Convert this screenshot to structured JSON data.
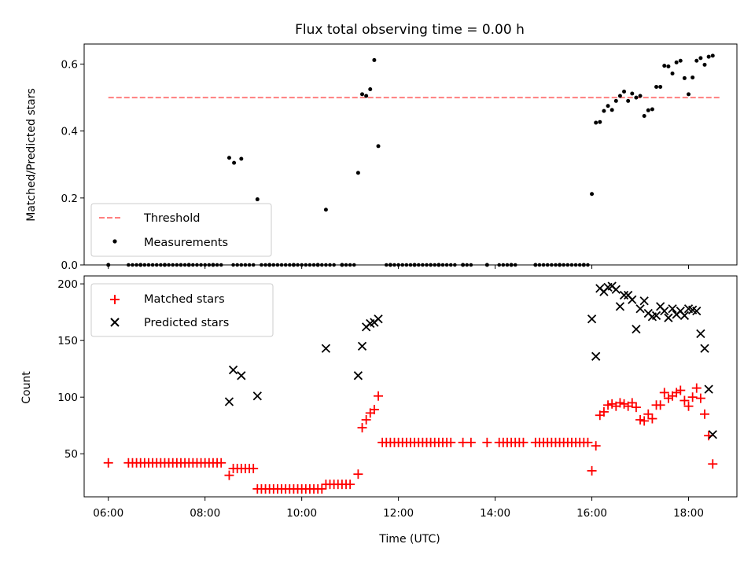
{
  "chart_data": [
    {
      "type": "scatter",
      "title": "Flux total observing time = 0.00 h",
      "ylabel": "Matched/Predicted stars",
      "xlabel": "",
      "xlim": [
        "05:30",
        "19:00"
      ],
      "ylim": [
        0,
        0.66
      ],
      "yticks": [
        0.0,
        0.2,
        0.4,
        0.6
      ],
      "ytick_labels": [
        "0.0",
        "0.2",
        "0.4",
        "0.6"
      ],
      "legend": {
        "placement": "lower-left"
      },
      "threshold": {
        "name": "Threshold",
        "y": 0.5,
        "x": [
          "06:00",
          "18:40"
        ],
        "color": "#ff7f7f"
      },
      "series": [
        {
          "name": "Measurements",
          "color": "#000000",
          "marker": "dot",
          "points": [
            [
              "06:00",
              0.0
            ],
            [
              "06:40",
              0.0
            ],
            [
              "07:10",
              0.0
            ],
            [
              "07:40",
              0.0
            ],
            [
              "08:10",
              0.0
            ],
            [
              "08:30",
              0.32
            ],
            [
              "08:36",
              0.305
            ],
            [
              "08:45",
              0.317
            ],
            [
              "09:05",
              0.196
            ],
            [
              "09:20",
              0.0
            ],
            [
              "09:50",
              0.0
            ],
            [
              "10:20",
              0.0
            ],
            [
              "10:30",
              0.165
            ],
            [
              "10:50",
              0.0
            ],
            [
              "11:10",
              0.275
            ],
            [
              "11:15",
              0.51
            ],
            [
              "11:20",
              0.505
            ],
            [
              "11:25",
              0.525
            ],
            [
              "11:30",
              0.612
            ],
            [
              "11:35",
              0.355
            ],
            [
              "11:50",
              0.0
            ],
            [
              "12:20",
              0.0
            ],
            [
              "12:50",
              0.0
            ],
            [
              "13:20",
              0.0
            ],
            [
              "13:50",
              0.0
            ],
            [
              "14:20",
              0.0
            ],
            [
              "14:50",
              0.0
            ],
            [
              "15:20",
              0.0
            ],
            [
              "15:50",
              0.0
            ],
            [
              "16:00",
              0.212
            ],
            [
              "16:05",
              0.425
            ],
            [
              "16:10",
              0.427
            ],
            [
              "16:15",
              0.46
            ],
            [
              "16:20",
              0.475
            ],
            [
              "16:25",
              0.463
            ],
            [
              "16:30",
              0.49
            ],
            [
              "16:35",
              0.505
            ],
            [
              "16:40",
              0.518
            ],
            [
              "16:45",
              0.49
            ],
            [
              "16:50",
              0.512
            ],
            [
              "16:55",
              0.5
            ],
            [
              "17:00",
              0.505
            ],
            [
              "17:05",
              0.445
            ],
            [
              "17:10",
              0.462
            ],
            [
              "17:15",
              0.465
            ],
            [
              "17:20",
              0.532
            ],
            [
              "17:25",
              0.532
            ],
            [
              "17:30",
              0.595
            ],
            [
              "17:35",
              0.593
            ],
            [
              "17:40",
              0.572
            ],
            [
              "17:45",
              0.605
            ],
            [
              "17:50",
              0.61
            ],
            [
              "17:55",
              0.558
            ],
            [
              "18:00",
              0.51
            ],
            [
              "18:05",
              0.56
            ],
            [
              "18:10",
              0.61
            ],
            [
              "18:15",
              0.618
            ],
            [
              "18:20",
              0.598
            ],
            [
              "18:25",
              0.622
            ],
            [
              "18:30",
              0.625
            ]
          ]
        }
      ],
      "zero_runs": [
        [
          "06:00",
          "06:00"
        ],
        [
          "06:25",
          "07:30"
        ],
        [
          "07:30",
          "08:20"
        ],
        [
          "08:35",
          "09:00"
        ],
        [
          "09:10",
          "10:40"
        ],
        [
          "10:50",
          "11:08"
        ],
        [
          "11:45",
          "12:40"
        ],
        [
          "12:40",
          "13:10"
        ],
        [
          "13:20",
          "13:30"
        ],
        [
          "14:05",
          "14:25"
        ],
        [
          "14:55",
          "15:58"
        ]
      ]
    },
    {
      "type": "scatter",
      "title": "",
      "ylabel": "Count",
      "xlabel": "Time (UTC)",
      "xlim": [
        "05:30",
        "19:00"
      ],
      "ylim": [
        12,
        207
      ],
      "yticks": [
        50,
        100,
        150,
        200
      ],
      "ytick_labels": [
        "50",
        "100",
        "150",
        "200"
      ],
      "xticks": [
        "06:00",
        "08:00",
        "10:00",
        "12:00",
        "14:00",
        "16:00",
        "18:00"
      ],
      "xtick_labels": [
        "06:00",
        "08:00",
        "10:00",
        "12:00",
        "14:00",
        "16:00",
        "18:00"
      ],
      "legend": {
        "placement": "top-left"
      },
      "series": [
        {
          "name": "Matched stars",
          "color": "#ff0000",
          "marker": "plus",
          "points": [
            [
              "06:00",
              42
            ],
            [
              "06:25",
              42
            ],
            [
              "06:30",
              42
            ],
            [
              "06:35",
              42
            ],
            [
              "06:40",
              42
            ],
            [
              "06:45",
              42
            ],
            [
              "06:50",
              42
            ],
            [
              "06:55",
              42
            ],
            [
              "07:00",
              42
            ],
            [
              "07:05",
              42
            ],
            [
              "07:10",
              42
            ],
            [
              "07:15",
              42
            ],
            [
              "07:20",
              42
            ],
            [
              "07:25",
              42
            ],
            [
              "07:30",
              42
            ],
            [
              "07:35",
              42
            ],
            [
              "07:40",
              42
            ],
            [
              "07:45",
              42
            ],
            [
              "07:50",
              42
            ],
            [
              "07:55",
              42
            ],
            [
              "08:00",
              42
            ],
            [
              "08:05",
              42
            ],
            [
              "08:10",
              42
            ],
            [
              "08:15",
              42
            ],
            [
              "08:20",
              42
            ],
            [
              "08:30",
              31
            ],
            [
              "08:35",
              37
            ],
            [
              "08:40",
              37
            ],
            [
              "08:45",
              37
            ],
            [
              "08:50",
              37
            ],
            [
              "08:55",
              37
            ],
            [
              "09:00",
              37
            ],
            [
              "09:05",
              19
            ],
            [
              "09:10",
              19
            ],
            [
              "09:15",
              19
            ],
            [
              "09:20",
              19
            ],
            [
              "09:25",
              19
            ],
            [
              "09:30",
              19
            ],
            [
              "09:35",
              19
            ],
            [
              "09:40",
              19
            ],
            [
              "09:45",
              19
            ],
            [
              "09:50",
              19
            ],
            [
              "09:55",
              19
            ],
            [
              "10:00",
              19
            ],
            [
              "10:05",
              19
            ],
            [
              "10:10",
              19
            ],
            [
              "10:15",
              19
            ],
            [
              "10:20",
              19
            ],
            [
              "10:25",
              19
            ],
            [
              "10:30",
              23
            ],
            [
              "10:35",
              23
            ],
            [
              "10:40",
              23
            ],
            [
              "10:45",
              23
            ],
            [
              "10:50",
              23
            ],
            [
              "10:55",
              23
            ],
            [
              "11:00",
              23
            ],
            [
              "11:10",
              32
            ],
            [
              "11:15",
              73
            ],
            [
              "11:20",
              80
            ],
            [
              "11:25",
              86
            ],
            [
              "11:30",
              89
            ],
            [
              "11:35",
              101
            ],
            [
              "11:40",
              60
            ],
            [
              "11:45",
              60
            ],
            [
              "11:50",
              60
            ],
            [
              "11:55",
              60
            ],
            [
              "12:00",
              60
            ],
            [
              "12:05",
              60
            ],
            [
              "12:10",
              60
            ],
            [
              "12:15",
              60
            ],
            [
              "12:20",
              60
            ],
            [
              "12:25",
              60
            ],
            [
              "12:30",
              60
            ],
            [
              "12:35",
              60
            ],
            [
              "12:40",
              60
            ],
            [
              "12:45",
              60
            ],
            [
              "12:50",
              60
            ],
            [
              "12:55",
              60
            ],
            [
              "13:00",
              60
            ],
            [
              "13:05",
              60
            ],
            [
              "13:20",
              60
            ],
            [
              "13:30",
              60
            ],
            [
              "13:50",
              60
            ],
            [
              "14:05",
              60
            ],
            [
              "14:10",
              60
            ],
            [
              "14:15",
              60
            ],
            [
              "14:20",
              60
            ],
            [
              "14:25",
              60
            ],
            [
              "14:30",
              60
            ],
            [
              "14:35",
              60
            ],
            [
              "14:50",
              60
            ],
            [
              "14:55",
              60
            ],
            [
              "15:00",
              60
            ],
            [
              "15:05",
              60
            ],
            [
              "15:10",
              60
            ],
            [
              "15:15",
              60
            ],
            [
              "15:20",
              60
            ],
            [
              "15:25",
              60
            ],
            [
              "15:30",
              60
            ],
            [
              "15:35",
              60
            ],
            [
              "15:40",
              60
            ],
            [
              "15:45",
              60
            ],
            [
              "15:50",
              60
            ],
            [
              "15:55",
              60
            ],
            [
              "16:00",
              35
            ],
            [
              "16:05",
              57
            ],
            [
              "16:10",
              84
            ],
            [
              "16:15",
              87
            ],
            [
              "16:20",
              93
            ],
            [
              "16:25",
              94
            ],
            [
              "16:30",
              92
            ],
            [
              "16:35",
              95
            ],
            [
              "16:40",
              94
            ],
            [
              "16:45",
              92
            ],
            [
              "16:50",
              95
            ],
            [
              "16:55",
              91
            ],
            [
              "17:00",
              80
            ],
            [
              "17:05",
              79
            ],
            [
              "17:10",
              85
            ],
            [
              "17:15",
              81
            ],
            [
              "17:20",
              93
            ],
            [
              "17:25",
              93
            ],
            [
              "17:30",
              104
            ],
            [
              "17:35",
              99
            ],
            [
              "17:40",
              101
            ],
            [
              "17:45",
              104
            ],
            [
              "17:50",
              106
            ],
            [
              "17:55",
              97
            ],
            [
              "18:00",
              92
            ],
            [
              "18:05",
              100
            ],
            [
              "18:10",
              108
            ],
            [
              "18:15",
              99
            ],
            [
              "18:20",
              85
            ],
            [
              "18:25",
              66
            ],
            [
              "18:30",
              41
            ]
          ]
        },
        {
          "name": "Predicted stars",
          "color": "#000000",
          "marker": "x",
          "points": [
            [
              "08:30",
              96
            ],
            [
              "08:35",
              124
            ],
            [
              "08:45",
              119
            ],
            [
              "09:05",
              101
            ],
            [
              "10:30",
              143
            ],
            [
              "11:10",
              119
            ],
            [
              "11:15",
              145
            ],
            [
              "11:20",
              162
            ],
            [
              "11:25",
              165
            ],
            [
              "11:30",
              166
            ],
            [
              "11:35",
              169
            ],
            [
              "16:00",
              169
            ],
            [
              "16:05",
              136
            ],
            [
              "16:10",
              196
            ],
            [
              "16:15",
              193
            ],
            [
              "16:20",
              197
            ],
            [
              "16:25",
              198
            ],
            [
              "16:30",
              195
            ],
            [
              "16:35",
              180
            ],
            [
              "16:40",
              190
            ],
            [
              "16:45",
              190
            ],
            [
              "16:50",
              186
            ],
            [
              "16:55",
              160
            ],
            [
              "17:00",
              178
            ],
            [
              "17:05",
              185
            ],
            [
              "17:10",
              174
            ],
            [
              "17:15",
              171
            ],
            [
              "17:20",
              172
            ],
            [
              "17:25",
              180
            ],
            [
              "17:30",
              176
            ],
            [
              "17:35",
              170
            ],
            [
              "17:40",
              178
            ],
            [
              "17:45",
              173
            ],
            [
              "17:50",
              176
            ],
            [
              "17:55",
              172
            ],
            [
              "18:00",
              178
            ],
            [
              "18:05",
              177
            ],
            [
              "18:10",
              176
            ],
            [
              "18:15",
              156
            ],
            [
              "18:20",
              143
            ],
            [
              "18:25",
              107
            ],
            [
              "18:30",
              67
            ]
          ]
        }
      ]
    }
  ]
}
